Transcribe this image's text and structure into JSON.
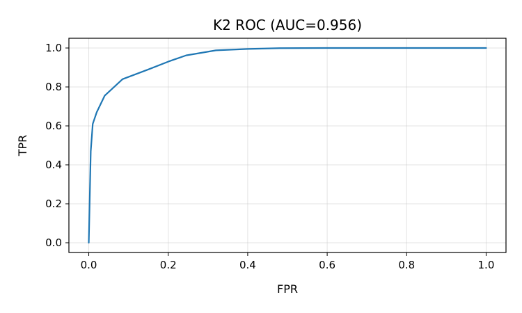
{
  "chart_data": {
    "type": "line",
    "title": "K2 ROC (AUC=0.956)",
    "xlabel": "FPR",
    "ylabel": "TPR",
    "xlim": [
      -0.05,
      1.05
    ],
    "ylim": [
      -0.05,
      1.05
    ],
    "xticks": [
      0.0,
      0.2,
      0.4,
      0.6,
      0.8,
      1.0
    ],
    "yticks": [
      0.0,
      0.2,
      0.4,
      0.6,
      0.8,
      1.0
    ],
    "xtick_labels": [
      "0.0",
      "0.2",
      "0.4",
      "0.6",
      "0.8",
      "1.0"
    ],
    "ytick_labels": [
      "0.0",
      "0.2",
      "0.4",
      "0.6",
      "0.8",
      "1.0"
    ],
    "grid": true,
    "legend": "none",
    "series": [
      {
        "color": "#1f77b4",
        "x": [
          0.0,
          0.005,
          0.01,
          0.02,
          0.04,
          0.085,
          0.15,
          0.2,
          0.245,
          0.32,
          0.4,
          0.48,
          0.6,
          0.8,
          1.0
        ],
        "y": [
          0.0,
          0.47,
          0.61,
          0.67,
          0.755,
          0.84,
          0.89,
          0.93,
          0.962,
          0.988,
          0.995,
          0.999,
          1.0,
          1.0,
          1.0
        ]
      }
    ]
  }
}
